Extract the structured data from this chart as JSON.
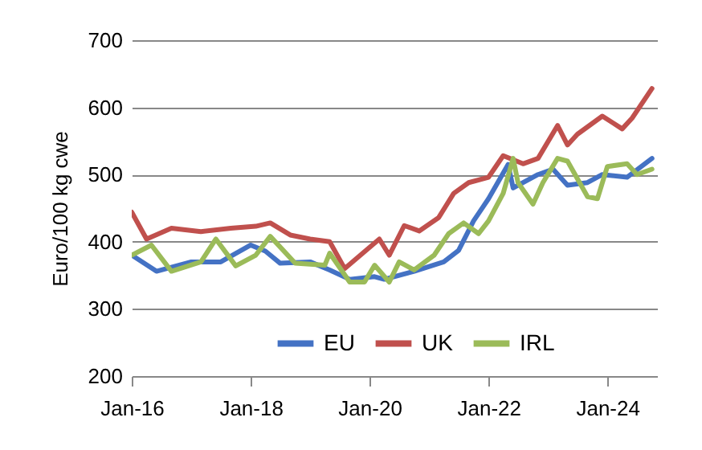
{
  "chart_data": {
    "type": "line",
    "ylabel": "Euro/100 kg cwe",
    "xlim": [
      "2016-01",
      "2024-11"
    ],
    "ylim": [
      200,
      700
    ],
    "yticks": [
      200,
      300,
      400,
      500,
      600,
      700
    ],
    "xticks": [
      {
        "value": "2016-01",
        "label": "Jan-16"
      },
      {
        "value": "2018-01",
        "label": "Jan-18"
      },
      {
        "value": "2020-01",
        "label": "Jan-20"
      },
      {
        "value": "2022-01",
        "label": "Jan-22"
      },
      {
        "value": "2024-01",
        "label": "Jan-24"
      }
    ],
    "grid": "y",
    "legend": "bottom",
    "line_style": "solid",
    "marker": "none",
    "series": [
      {
        "name": "EU",
        "color": "#4472c4",
        "x": [
          "2016-01",
          "2016-06",
          "2017-01",
          "2017-07",
          "2018-01",
          "2018-04",
          "2018-07",
          "2019-01",
          "2019-05",
          "2019-09",
          "2020-02",
          "2020-04",
          "2020-10",
          "2021-04",
          "2021-07",
          "2021-10",
          "2022-01",
          "2022-05",
          "2022-06",
          "2022-11",
          "2023-02",
          "2023-05",
          "2023-09",
          "2023-12",
          "2024-05",
          "2024-10"
        ],
        "values": [
          380,
          356,
          370,
          370,
          395,
          386,
          368,
          370,
          358,
          344,
          348,
          344,
          356,
          370,
          387,
          431,
          464,
          515,
          480,
          500,
          508,
          484,
          488,
          500,
          496,
          524
        ]
      },
      {
        "name": "UK",
        "color": "#c0504d",
        "x": [
          "2016-01",
          "2016-04",
          "2016-09",
          "2017-03",
          "2017-09",
          "2018-02",
          "2018-05",
          "2018-09",
          "2019-01",
          "2019-05",
          "2019-08",
          "2020-03",
          "2020-05",
          "2020-08",
          "2020-11",
          "2021-03",
          "2021-06",
          "2021-09",
          "2022-01",
          "2022-04",
          "2022-08",
          "2022-11",
          "2023-03",
          "2023-05",
          "2023-07",
          "2023-12",
          "2024-04",
          "2024-06",
          "2024-10"
        ],
        "values": [
          444,
          404,
          420,
          415,
          420,
          423,
          428,
          410,
          404,
          400,
          360,
          404,
          380,
          424,
          416,
          436,
          472,
          488,
          496,
          528,
          516,
          524,
          573,
          544,
          560,
          587,
          568,
          584,
          628
        ]
      },
      {
        "name": "IRL",
        "color": "#9bbb59",
        "x": [
          "2016-01",
          "2016-05",
          "2016-09",
          "2017-03",
          "2017-06",
          "2017-10",
          "2018-02",
          "2018-05",
          "2018-10",
          "2019-04",
          "2019-05",
          "2019-09",
          "2019-12",
          "2020-02",
          "2020-05",
          "2020-07",
          "2020-10",
          "2021-02",
          "2021-05",
          "2021-08",
          "2021-11",
          "2022-01",
          "2022-04",
          "2022-06",
          "2022-07",
          "2022-10",
          "2022-12",
          "2023-03",
          "2023-05",
          "2023-09",
          "2023-11",
          "2024-01",
          "2024-05",
          "2024-07",
          "2024-10"
        ],
        "values": [
          380,
          395,
          356,
          370,
          404,
          364,
          380,
          408,
          368,
          365,
          383,
          340,
          340,
          365,
          340,
          370,
          358,
          380,
          412,
          428,
          412,
          431,
          472,
          524,
          488,
          456,
          488,
          524,
          520,
          467,
          464,
          512,
          516,
          500,
          508
        ]
      }
    ]
  }
}
